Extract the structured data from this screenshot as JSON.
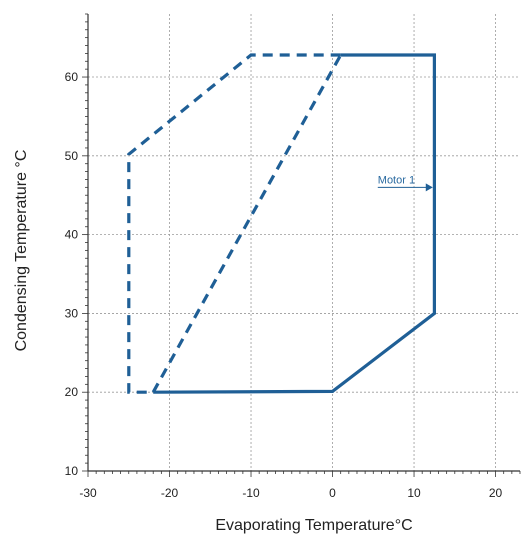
{
  "chart_data": {
    "type": "line",
    "xlabel": "Evaporating Temperature°C",
    "ylabel": "Condensing Temperature °C",
    "xlim": [
      -30,
      23
    ],
    "ylim": [
      10,
      68
    ],
    "xticks": [
      -30,
      -20,
      -10,
      0,
      10,
      20
    ],
    "yticks": [
      10,
      20,
      30,
      40,
      50,
      60
    ],
    "grid": true,
    "colors": {
      "envelope": "#1f5f96",
      "grid": "#9a9a9a",
      "axis": "#333333"
    },
    "series": [
      {
        "style": "solid",
        "points": [
          [
            -22,
            20
          ],
          [
            0,
            20.1
          ],
          [
            12.5,
            30
          ],
          [
            12.5,
            62.8
          ],
          [
            1,
            62.8
          ]
        ]
      },
      {
        "style": "dashed",
        "points": [
          [
            1,
            62.8
          ],
          [
            -10,
            62.8
          ],
          [
            -25,
            50.2
          ],
          [
            -25,
            20
          ],
          [
            -22,
            20
          ]
        ]
      },
      {
        "style": "dashed",
        "points": [
          [
            -22,
            20
          ],
          [
            1,
            62.8
          ]
        ]
      }
    ],
    "annotations": [
      {
        "text": "Motor 1",
        "x": 12.3,
        "y": 46,
        "arrow": true
      }
    ]
  }
}
